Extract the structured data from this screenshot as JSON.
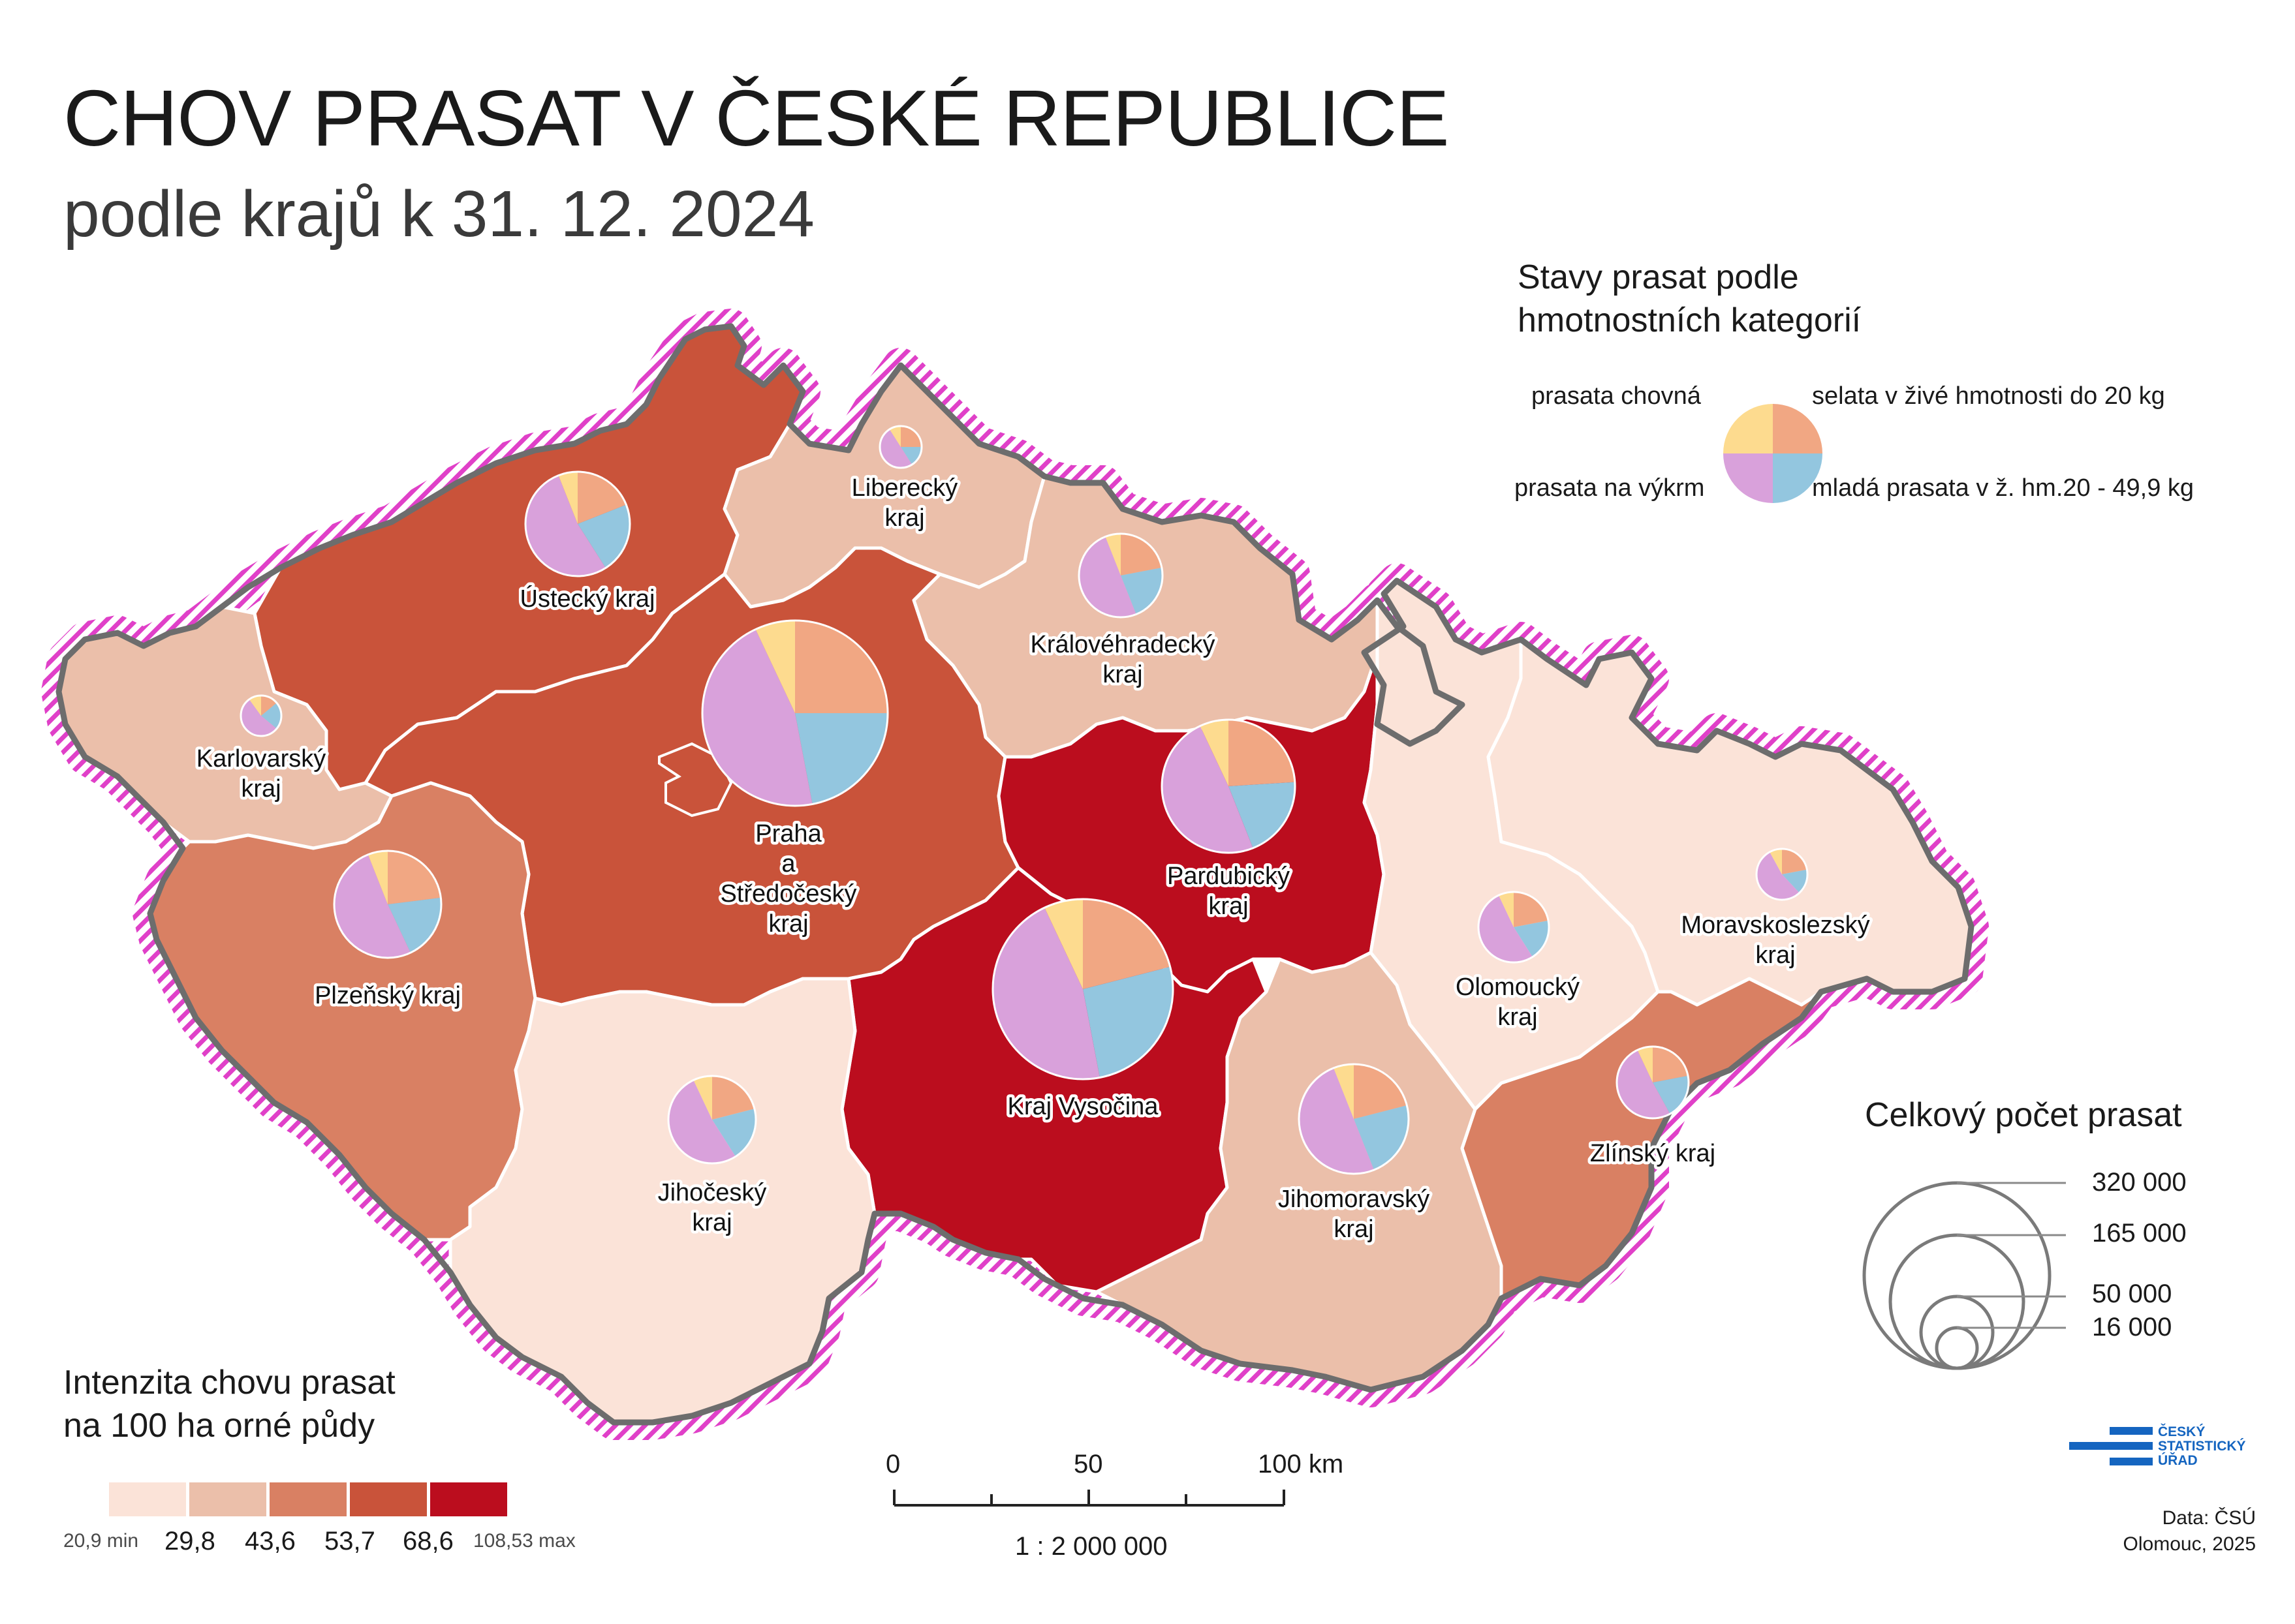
{
  "title": "CHOV PRASAT V ČESKÉ REPUBLICE",
  "subtitle": "podle krajů k 31. 12. 2024",
  "colors": {
    "class_1": "#fbe3d8",
    "class_2": "#ebbfaa",
    "class_3": "#d98063",
    "class_4": "#c9533a",
    "class_5": "#bb0d1e",
    "pie_prasata_chovna": "#fddb8f",
    "pie_selata": "#f1a783",
    "pie_mlada_prasata": "#93c6df",
    "pie_vykrm": "#d9a1db",
    "border_hatch": "#e040c8",
    "border_outline": "#6d6d6d"
  },
  "regions": [
    {
      "id": "ustecky",
      "label": [
        "Ústecký kraj"
      ],
      "intensity_class": 4,
      "shares": [
        0.06,
        0.19,
        0.22,
        0.53
      ]
    },
    {
      "id": "liberecky",
      "label": [
        "Liberecký",
        "kraj"
      ],
      "intensity_class": 2,
      "shares": [
        0.09,
        0.25,
        0.16,
        0.5
      ]
    },
    {
      "id": "kralovehradecky",
      "label": [
        "Královéhradecký",
        "kraj"
      ],
      "intensity_class": 2,
      "shares": [
        0.06,
        0.22,
        0.22,
        0.5
      ]
    },
    {
      "id": "karlovarsky",
      "label": [
        "Karlovarský",
        "kraj"
      ],
      "intensity_class": 2,
      "shares": [
        0.1,
        0.14,
        0.22,
        0.54
      ]
    },
    {
      "id": "praha_stredocesky",
      "label": [
        "Praha",
        "a",
        "Středočeský",
        "kraj"
      ],
      "intensity_class": 4,
      "shares": [
        0.07,
        0.25,
        0.22,
        0.46
      ]
    },
    {
      "id": "pardubicky",
      "label": [
        "Pardubický",
        "kraj"
      ],
      "intensity_class": 5,
      "shares": [
        0.07,
        0.24,
        0.2,
        0.49
      ]
    },
    {
      "id": "plzensky",
      "label": [
        "Plzeňský kraj"
      ],
      "intensity_class": 3,
      "shares": [
        0.06,
        0.23,
        0.2,
        0.51
      ]
    },
    {
      "id": "vysocina",
      "label": [
        "Kraj Vysočina"
      ],
      "intensity_class": 5,
      "shares": [
        0.07,
        0.21,
        0.26,
        0.46
      ]
    },
    {
      "id": "jihocesky",
      "label": [
        "Jihočeský",
        "kraj"
      ],
      "intensity_class": 1,
      "shares": [
        0.07,
        0.21,
        0.2,
        0.52
      ]
    },
    {
      "id": "jihomoravsky",
      "label": [
        "Jihomoravský",
        "kraj"
      ],
      "intensity_class": 2,
      "shares": [
        0.06,
        0.21,
        0.23,
        0.5
      ]
    },
    {
      "id": "olomoucky",
      "label": [
        "Olomoucký",
        "kraj"
      ],
      "intensity_class": 1,
      "shares": [
        0.07,
        0.22,
        0.19,
        0.52
      ]
    },
    {
      "id": "moravskoslezsky",
      "label": [
        "Moravskoslezský",
        "kraj"
      ],
      "intensity_class": 1,
      "shares": [
        0.08,
        0.22,
        0.16,
        0.54
      ]
    },
    {
      "id": "zlinsky",
      "label": [
        "Zlínský kraj"
      ],
      "intensity_class": 3,
      "shares": [
        0.07,
        0.22,
        0.2,
        0.51
      ]
    }
  ],
  "category_legend": {
    "title": "Stavy prasat podle hmotnostních kategorií",
    "title_lines": [
      "Stavy prasat podle",
      "hmotnostních kategorií"
    ],
    "prasata_chovna": "prasata chovná",
    "selata": "selata v živé hmotnosti do 20 kg",
    "vykrm": "prasata na výkrm",
    "mlada_prasata": "mladá prasata v ž. hm.20 - 49,9 kg"
  },
  "size_legend": {
    "title": "Celkový počet prasat",
    "labels": [
      "320 000",
      "165 000",
      "50 000",
      "16 000"
    ]
  },
  "intensity_legend": {
    "title_lines": [
      "Intenzita chovu prasat",
      "na 100 ha orné půdy"
    ],
    "min_label": "20,9 min",
    "max_label": "108,53 max",
    "breaks": [
      "29,8",
      "43,6",
      "53,7",
      "68,6"
    ]
  },
  "scale": {
    "ticks": [
      "0",
      "50",
      "100 km"
    ],
    "ratio": "1 : 2 000 000"
  },
  "logo_lines": [
    "ČESKÝ",
    "STATISTICKÝ",
    "ÚŘAD"
  ],
  "credits": [
    "Data: ČSÚ",
    "Olomouc, 2025"
  ]
}
